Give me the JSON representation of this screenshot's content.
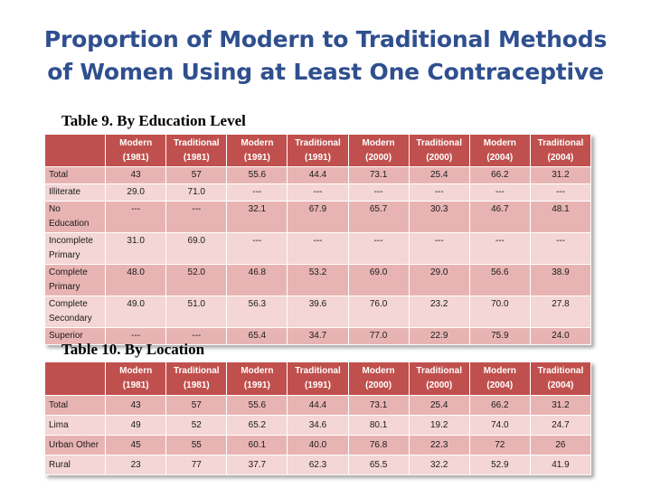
{
  "title": {
    "line1": "Proportion of Modern to Traditional Methods",
    "line2": "of Women Using at Least One Contraceptive"
  },
  "columns": [
    {
      "method": "Modern",
      "year": "(1981)"
    },
    {
      "method": "Traditional",
      "year": "(1981)"
    },
    {
      "method": "Modern",
      "year": "(1991)"
    },
    {
      "method": "Traditional",
      "year": "(1991)"
    },
    {
      "method": "Modern",
      "year": "(2000)"
    },
    {
      "method": "Traditional",
      "year": "(2000)"
    },
    {
      "method": "Modern",
      "year": "(2004)"
    },
    {
      "method": "Traditional",
      "year": "(2004)"
    }
  ],
  "table9": {
    "heading": "Table 9. By Education Level",
    "rows": [
      {
        "label": [
          "Total"
        ],
        "values": [
          "43",
          "57",
          "55.6",
          "44.4",
          "73.1",
          "25.4",
          "66.2",
          "31.2"
        ]
      },
      {
        "label": [
          "Illiterate"
        ],
        "values": [
          "29.0",
          "71.0",
          "---",
          "---",
          "---",
          "---",
          "---",
          "---"
        ]
      },
      {
        "label": [
          "No",
          "Education"
        ],
        "values": [
          "---",
          "---",
          "32.1",
          "67.9",
          "65.7",
          "30.3",
          "46.7",
          "48.1"
        ]
      },
      {
        "label": [
          "Incomplete",
          "Primary"
        ],
        "values": [
          "31.0",
          "69.0",
          "---",
          "---",
          "---",
          "---",
          "---",
          "---"
        ]
      },
      {
        "label": [
          "Complete",
          "Primary"
        ],
        "values": [
          "48.0",
          "52.0",
          "46.8",
          "53.2",
          "69.0",
          "29.0",
          "56.6",
          "38.9"
        ]
      },
      {
        "label": [
          "Complete",
          "Secondary"
        ],
        "values": [
          "49.0",
          "51.0",
          "56.3",
          "39.6",
          "76.0",
          "23.2",
          "70.0",
          "27.8"
        ]
      },
      {
        "label": [
          "Superior"
        ],
        "values": [
          "---",
          "---",
          "65.4",
          "34.7",
          "77.0",
          "22.9",
          "75.9",
          "24.0"
        ]
      }
    ]
  },
  "table10": {
    "heading": "Table 10. By Location",
    "rows": [
      {
        "label": [
          "Total"
        ],
        "values": [
          "43",
          "57",
          "55.6",
          "44.4",
          "73.1",
          "25.4",
          "66.2",
          "31.2"
        ]
      },
      {
        "label": [
          "Lima"
        ],
        "values": [
          "49",
          "52",
          "65.2",
          "34.6",
          "80.1",
          "19.2",
          "74.0",
          "24.7"
        ]
      },
      {
        "label": [
          "Urban Other"
        ],
        "values": [
          "45",
          "55",
          "60.1",
          "40.0",
          "76.8",
          "22.3",
          "72",
          "26"
        ]
      },
      {
        "label": [
          "Rural"
        ],
        "values": [
          "23",
          "77",
          "37.7",
          "62.3",
          "65.5",
          "32.2",
          "52.9",
          "41.9"
        ]
      }
    ]
  }
}
